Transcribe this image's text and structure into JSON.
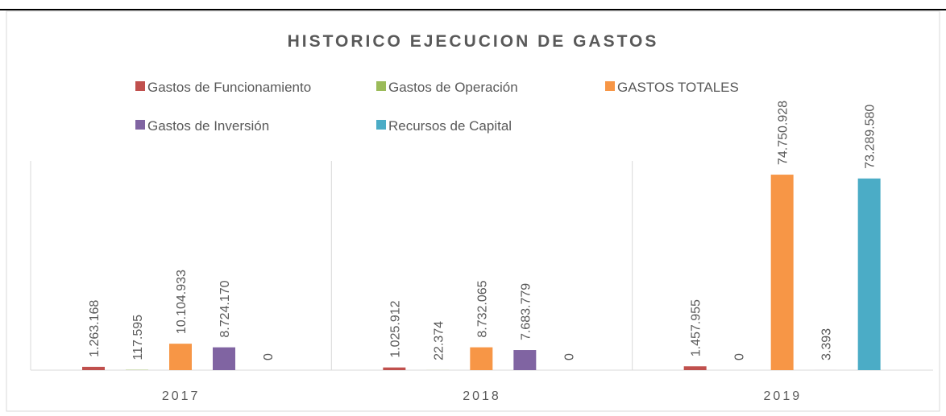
{
  "chart_data": {
    "type": "bar",
    "title": "HISTORICO EJECUCION DE GASTOS",
    "categories": [
      "2017",
      "2018",
      "2019"
    ],
    "series": [
      {
        "name": "Gastos de Funcionamiento",
        "color": "#c0504d",
        "values": [
          1263168,
          1025912,
          1457955
        ],
        "value_labels": [
          "1.263.168",
          "1.025.912",
          "1.457.955"
        ]
      },
      {
        "name": "Gastos de Operación",
        "color": "#9bbb59",
        "values": [
          117595,
          22374,
          0
        ],
        "value_labels": [
          "117.595",
          "22.374",
          "0"
        ]
      },
      {
        "name": "GASTOS TOTALES",
        "color": "#f79646",
        "values": [
          10104933,
          8732065,
          74750928
        ],
        "value_labels": [
          "10.104.933",
          "8.732.065",
          "74.750.928"
        ]
      },
      {
        "name": "Gastos de Inversión",
        "color": "#8064a2",
        "values": [
          8724170,
          7683779,
          3393
        ],
        "value_labels": [
          "8.724.170",
          "7.683.779",
          "3.393"
        ]
      },
      {
        "name": "Recursos de Capital",
        "color": "#4bacc6",
        "values": [
          0,
          0,
          73289580
        ],
        "value_labels": [
          "0",
          "0",
          "73.289.580"
        ]
      }
    ],
    "ylim": [
      0,
      80000000
    ],
    "legend": "top"
  }
}
